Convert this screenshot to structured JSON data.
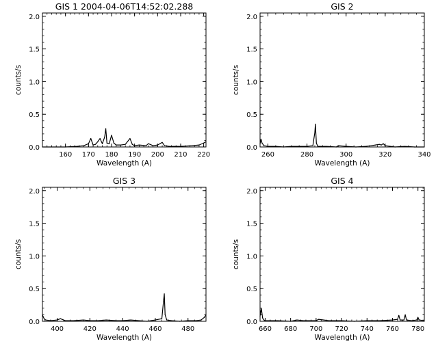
{
  "chart_data": [
    {
      "type": "line",
      "title": "GIS 1 2004-04-06T14:52:02.288",
      "xlabel": "Wavelength (A)",
      "ylabel": "counts/s",
      "xlim": [
        150,
        221
      ],
      "ylim": [
        0,
        2.05
      ],
      "xticks": [
        160,
        170,
        180,
        190,
        200,
        210,
        220
      ],
      "yticks": [
        0.0,
        0.5,
        1.0,
        1.5,
        2.0
      ],
      "ytick_labels": [
        "0.0",
        "0.5",
        "1.0",
        "1.5",
        "2.0"
      ],
      "x": [
        150,
        160,
        165,
        168,
        170,
        171,
        172,
        173,
        174,
        175,
        176,
        177,
        177.5,
        178,
        179,
        180,
        181,
        182,
        184,
        186,
        188,
        189,
        190,
        192,
        195,
        196,
        198,
        200,
        202,
        203,
        205,
        210,
        215,
        218,
        220,
        221
      ],
      "y": [
        0.0,
        0.0,
        0.01,
        0.02,
        0.05,
        0.13,
        0.03,
        0.04,
        0.08,
        0.13,
        0.05,
        0.15,
        0.28,
        0.06,
        0.05,
        0.18,
        0.06,
        0.03,
        0.03,
        0.04,
        0.13,
        0.04,
        0.02,
        0.03,
        0.02,
        0.05,
        0.02,
        0.03,
        0.07,
        0.02,
        0.01,
        0.01,
        0.02,
        0.03,
        0.06,
        0.08
      ]
    },
    {
      "type": "line",
      "title": "GIS 2",
      "xlabel": "Wavelength (A)",
      "ylabel": "counts/s",
      "xlim": [
        256,
        340
      ],
      "ylim": [
        0,
        2.05
      ],
      "xticks": [
        260,
        280,
        300,
        320,
        340
      ],
      "yticks": [
        0.0,
        0.5,
        1.0,
        1.5,
        2.0
      ],
      "ytick_labels": [
        "0.0",
        "0.5",
        "1.0",
        "1.5",
        "2.0"
      ],
      "x": [
        256,
        256.5,
        257,
        258,
        260,
        264,
        268,
        272,
        276,
        280,
        283,
        284,
        284.3,
        284.8,
        285.5,
        290,
        295,
        296,
        300,
        305,
        310,
        313,
        315,
        317,
        318,
        319,
        320,
        325,
        330,
        335,
        340
      ],
      "y": [
        0.05,
        0.12,
        0.06,
        0.02,
        0.01,
        0.01,
        0.0,
        0.01,
        0.01,
        0.01,
        0.02,
        0.22,
        0.35,
        0.06,
        0.01,
        0.01,
        0.0,
        0.02,
        0.01,
        0.0,
        0.01,
        0.02,
        0.03,
        0.04,
        0.03,
        0.05,
        0.02,
        0.0,
        0.01,
        0.0,
        0.0
      ]
    },
    {
      "type": "line",
      "title": "GIS 3",
      "xlabel": "Wavelength (A)",
      "ylabel": "counts/s",
      "xlim": [
        391,
        491
      ],
      "ylim": [
        0,
        2.05
      ],
      "xticks": [
        400,
        420,
        440,
        460,
        480
      ],
      "yticks": [
        0.0,
        0.5,
        1.0,
        1.5,
        2.0
      ],
      "ytick_labels": [
        "0.0",
        "0.5",
        "1.0",
        "1.5",
        "2.0"
      ],
      "x": [
        391,
        392,
        393,
        396,
        400,
        402,
        405,
        410,
        416,
        420,
        425,
        430,
        436,
        440,
        445,
        450,
        455,
        460,
        464,
        465,
        465.5,
        466,
        467,
        470,
        475,
        480,
        485,
        488,
        490,
        491
      ],
      "y": [
        0.1,
        0.04,
        0.02,
        0.01,
        0.02,
        0.04,
        0.01,
        0.01,
        0.02,
        0.01,
        0.01,
        0.02,
        0.01,
        0.01,
        0.02,
        0.01,
        0.0,
        0.02,
        0.04,
        0.3,
        0.42,
        0.1,
        0.02,
        0.01,
        0.0,
        0.01,
        0.01,
        0.02,
        0.06,
        0.1
      ]
    },
    {
      "type": "line",
      "title": "GIS 4",
      "xlabel": "Wavelength (A)",
      "ylabel": "counts/s",
      "xlim": [
        656,
        785
      ],
      "ylim": [
        0,
        2.05
      ],
      "xticks": [
        660,
        680,
        700,
        720,
        740,
        760,
        780
      ],
      "yticks": [
        0.0,
        0.5,
        1.0,
        1.5,
        2.0
      ],
      "ytick_labels": [
        "0.0",
        "0.5",
        "1.0",
        "1.5",
        "2.0"
      ],
      "x": [
        656,
        657,
        658,
        659,
        660,
        670,
        680,
        685,
        690,
        700,
        702,
        710,
        720,
        730,
        740,
        750,
        760,
        764,
        765,
        766,
        769,
        770,
        771,
        775,
        779,
        780,
        781,
        785
      ],
      "y": [
        0.08,
        0.2,
        0.05,
        0.02,
        0.01,
        0.01,
        0.0,
        0.02,
        0.01,
        0.01,
        0.03,
        0.01,
        0.01,
        0.0,
        0.01,
        0.01,
        0.02,
        0.03,
        0.09,
        0.02,
        0.02,
        0.1,
        0.02,
        0.01,
        0.02,
        0.06,
        0.02,
        0.01
      ]
    }
  ]
}
